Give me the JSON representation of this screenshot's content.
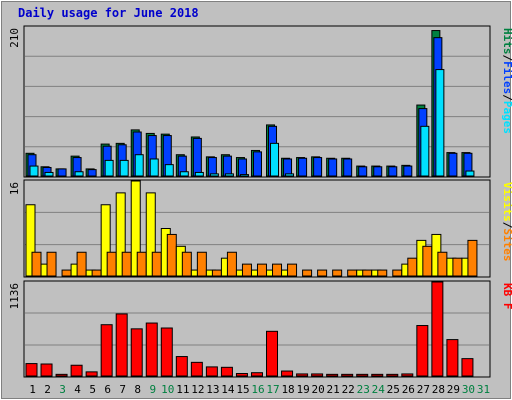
{
  "chart_data": [
    {
      "type": "bar",
      "title": "Daily usage for June 2018",
      "ymax_label": "210",
      "ylabel_parts": [
        {
          "text": "Hits",
          "color": "#008040"
        },
        {
          "text": "Files",
          "color": "#0040ff"
        },
        {
          "text": "Pages",
          "color": "#00e0ff"
        }
      ],
      "ylim": [
        0,
        210
      ],
      "categories": [
        "1",
        "2",
        "3",
        "4",
        "5",
        "6",
        "7",
        "8",
        "9",
        "10",
        "11",
        "12",
        "13",
        "14",
        "15",
        "16",
        "17",
        "18",
        "19",
        "20",
        "21",
        "22",
        "23",
        "24",
        "25",
        "26",
        "27",
        "28",
        "29",
        "30",
        "31"
      ],
      "series": [
        {
          "name": "Hits",
          "color": "#008040",
          "values": [
            32,
            13,
            10,
            28,
            10,
            45,
            46,
            65,
            60,
            59,
            30,
            55,
            27,
            30,
            26,
            36,
            72,
            25,
            26,
            27,
            25,
            25,
            14,
            14,
            14,
            15,
            100,
            205,
            33,
            33,
            0
          ]
        },
        {
          "name": "Files",
          "color": "#0040ff",
          "values": [
            30,
            12,
            10,
            26,
            9,
            42,
            44,
            62,
            57,
            57,
            28,
            53,
            26,
            28,
            24,
            34,
            70,
            24,
            25,
            26,
            24,
            24,
            13,
            13,
            13,
            14,
            95,
            195,
            32,
            32,
            0
          ]
        },
        {
          "name": "Pages",
          "color": "#00e0ff",
          "values": [
            14,
            5,
            0,
            6,
            0,
            22,
            22,
            30,
            24,
            16,
            6,
            5,
            3,
            3,
            2,
            0,
            46,
            3,
            0,
            0,
            0,
            0,
            0,
            0,
            0,
            0,
            70,
            150,
            0,
            7,
            0
          ]
        }
      ]
    },
    {
      "type": "bar",
      "ymax_label": "16",
      "ylabel_parts": [
        {
          "text": "Visits",
          "color": "#ffff00"
        },
        {
          "text": "Sites",
          "color": "#ff8000"
        }
      ],
      "ylim": [
        0,
        16
      ],
      "categories": [
        "1",
        "2",
        "3",
        "4",
        "5",
        "6",
        "7",
        "8",
        "9",
        "10",
        "11",
        "12",
        "13",
        "14",
        "15",
        "16",
        "17",
        "18",
        "19",
        "20",
        "21",
        "22",
        "23",
        "24",
        "25",
        "26",
        "27",
        "28",
        "29",
        "30",
        "31"
      ],
      "series": [
        {
          "name": "Visits",
          "color": "#ffff00",
          "values": [
            12,
            2,
            0,
            2,
            1,
            12,
            14,
            16,
            14,
            8,
            5,
            1,
            1,
            3,
            1,
            1,
            1,
            1,
            0,
            0,
            0,
            0,
            1,
            1,
            0,
            2,
            6,
            7,
            3,
            3,
            0
          ]
        },
        {
          "name": "Sites",
          "color": "#ff8000",
          "values": [
            4,
            4,
            1,
            4,
            1,
            4,
            4,
            4,
            4,
            7,
            4,
            4,
            1,
            4,
            2,
            2,
            2,
            2,
            1,
            1,
            1,
            1,
            1,
            1,
            1,
            3,
            5,
            4,
            3,
            6,
            0
          ]
        }
      ]
    },
    {
      "type": "bar",
      "ymax_label": "1136",
      "ylabel_parts": [
        {
          "text": "KB F",
          "color": "#ff0000"
        }
      ],
      "ylim": [
        0,
        1136
      ],
      "categories": [
        "1",
        "2",
        "3",
        "4",
        "5",
        "6",
        "7",
        "8",
        "9",
        "10",
        "11",
        "12",
        "13",
        "14",
        "15",
        "16",
        "17",
        "18",
        "19",
        "20",
        "21",
        "22",
        "23",
        "24",
        "25",
        "26",
        "27",
        "28",
        "29",
        "30",
        "31"
      ],
      "series": [
        {
          "name": "KB F",
          "color": "#ff0000",
          "values": [
            150,
            145,
            20,
            130,
            50,
            620,
            750,
            570,
            640,
            580,
            235,
            165,
            110,
            105,
            30,
            40,
            540,
            60,
            25,
            25,
            20,
            20,
            20,
            20,
            20,
            25,
            610,
            1136,
            440,
            210,
            0
          ]
        }
      ]
    }
  ],
  "x_labels": [
    {
      "text": "1",
      "color": "#000000"
    },
    {
      "text": "2",
      "color": "#000000"
    },
    {
      "text": "3",
      "color": "#008040"
    },
    {
      "text": "4",
      "color": "#000000"
    },
    {
      "text": "5",
      "color": "#000000"
    },
    {
      "text": "6",
      "color": "#000000"
    },
    {
      "text": "7",
      "color": "#000000"
    },
    {
      "text": "8",
      "color": "#000000"
    },
    {
      "text": "9",
      "color": "#008040"
    },
    {
      "text": "10",
      "color": "#008040"
    },
    {
      "text": "11",
      "color": "#000000"
    },
    {
      "text": "12",
      "color": "#000000"
    },
    {
      "text": "13",
      "color": "#000000"
    },
    {
      "text": "14",
      "color": "#000000"
    },
    {
      "text": "15",
      "color": "#000000"
    },
    {
      "text": "16",
      "color": "#008040"
    },
    {
      "text": "17",
      "color": "#008040"
    },
    {
      "text": "18",
      "color": "#000000"
    },
    {
      "text": "19",
      "color": "#000000"
    },
    {
      "text": "20",
      "color": "#000000"
    },
    {
      "text": "21",
      "color": "#000000"
    },
    {
      "text": "22",
      "color": "#000000"
    },
    {
      "text": "23",
      "color": "#008040"
    },
    {
      "text": "24",
      "color": "#008040"
    },
    {
      "text": "25",
      "color": "#000000"
    },
    {
      "text": "26",
      "color": "#000000"
    },
    {
      "text": "27",
      "color": "#000000"
    },
    {
      "text": "28",
      "color": "#000000"
    },
    {
      "text": "29",
      "color": "#000000"
    },
    {
      "text": "30",
      "color": "#008040"
    },
    {
      "text": "31",
      "color": "#008040"
    }
  ]
}
